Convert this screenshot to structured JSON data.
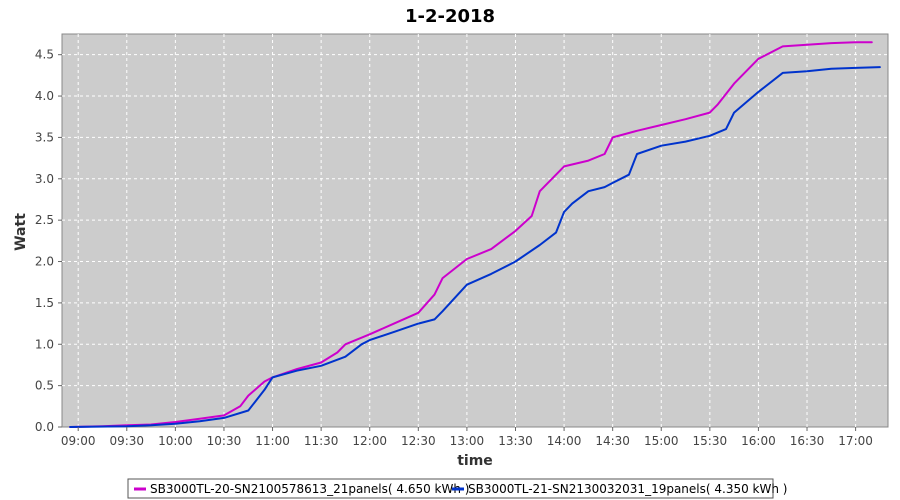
{
  "chart_data": {
    "type": "line",
    "title": "1-2-2018",
    "xlabel": "time",
    "ylabel": "Watt",
    "x_unit": "time-of-day",
    "xlim": [
      "08:50",
      "17:20"
    ],
    "ylim": [
      0,
      4.75
    ],
    "x_ticks": [
      "09:00",
      "09:30",
      "10:00",
      "10:30",
      "11:00",
      "11:30",
      "12:00",
      "12:30",
      "13:00",
      "13:30",
      "14:00",
      "14:30",
      "15:00",
      "15:30",
      "16:00",
      "16:30",
      "17:00"
    ],
    "y_ticks": [
      0.0,
      0.5,
      1.0,
      1.5,
      2.0,
      2.5,
      3.0,
      3.5,
      4.0,
      4.5
    ],
    "y_tick_labels": [
      "0.0",
      "0.5",
      "1.0",
      "1.5",
      "2.0",
      "2.5",
      "3.0",
      "3.5",
      "4.0",
      "4.5"
    ],
    "grid": true,
    "legend_position": "bottom",
    "background_color": "#cccccc",
    "series": [
      {
        "name": "SB3000TL-20-SN2100578613_21panels( 4.650 kWh )",
        "color": "#cc00cc",
        "x": [
          "08:55",
          "09:15",
          "09:30",
          "09:45",
          "10:00",
          "10:15",
          "10:30",
          "10:40",
          "10:45",
          "10:55",
          "11:00",
          "11:15",
          "11:30",
          "11:40",
          "11:45",
          "12:00",
          "12:15",
          "12:30",
          "12:40",
          "12:45",
          "13:00",
          "13:15",
          "13:30",
          "13:40",
          "13:45",
          "14:00",
          "14:15",
          "14:25",
          "14:30",
          "14:45",
          "15:00",
          "15:15",
          "15:30",
          "15:35",
          "15:45",
          "16:00",
          "16:15",
          "16:30",
          "16:45",
          "17:00",
          "17:10"
        ],
        "y": [
          0.0,
          0.01,
          0.02,
          0.03,
          0.06,
          0.1,
          0.14,
          0.25,
          0.38,
          0.55,
          0.6,
          0.7,
          0.78,
          0.9,
          1.0,
          1.12,
          1.25,
          1.38,
          1.6,
          1.8,
          2.03,
          2.15,
          2.37,
          2.55,
          2.85,
          3.15,
          3.22,
          3.3,
          3.5,
          3.58,
          3.65,
          3.72,
          3.8,
          3.9,
          4.15,
          4.45,
          4.6,
          4.62,
          4.64,
          4.65,
          4.65
        ]
      },
      {
        "name": "SB3000TL-21-SN2130032031_19panels( 4.350 kWh )",
        "color": "#0033cc",
        "x": [
          "08:55",
          "09:30",
          "09:45",
          "10:00",
          "10:15",
          "10:30",
          "10:45",
          "10:55",
          "11:00",
          "11:15",
          "11:30",
          "11:45",
          "11:55",
          "12:00",
          "12:15",
          "12:30",
          "12:40",
          "12:45",
          "13:00",
          "13:15",
          "13:30",
          "13:45",
          "13:55",
          "14:00",
          "14:05",
          "14:15",
          "14:25",
          "14:30",
          "14:40",
          "14:45",
          "15:00",
          "15:15",
          "15:30",
          "15:40",
          "15:45",
          "16:00",
          "16:15",
          "16:30",
          "16:45",
          "17:00",
          "17:15"
        ],
        "y": [
          0.0,
          0.01,
          0.02,
          0.04,
          0.07,
          0.11,
          0.2,
          0.45,
          0.6,
          0.68,
          0.74,
          0.85,
          1.0,
          1.05,
          1.15,
          1.25,
          1.3,
          1.4,
          1.72,
          1.85,
          2.0,
          2.2,
          2.35,
          2.6,
          2.7,
          2.85,
          2.9,
          2.95,
          3.05,
          3.3,
          3.4,
          3.45,
          3.52,
          3.6,
          3.8,
          4.05,
          4.28,
          4.3,
          4.33,
          4.34,
          4.35
        ]
      }
    ]
  }
}
